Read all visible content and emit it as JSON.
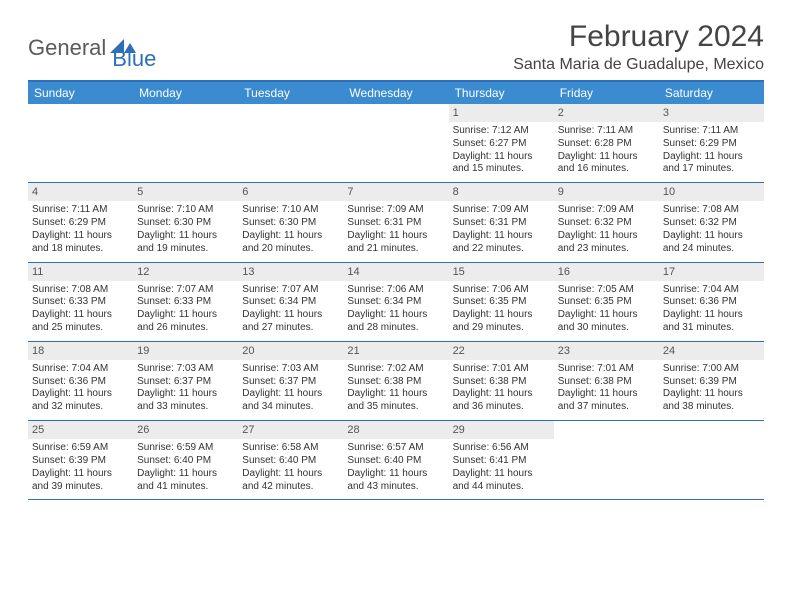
{
  "logo": {
    "text1": "General",
    "text2": "Blue"
  },
  "title": "February 2024",
  "location": "Santa Maria de Guadalupe, Mexico",
  "colors": {
    "header_bar": "#3a8bd0",
    "border": "#2d6fb8",
    "daynum_bg": "#ececec",
    "logo_gray": "#5a5a5a",
    "logo_blue": "#2d6fb8"
  },
  "day_names": [
    "Sunday",
    "Monday",
    "Tuesday",
    "Wednesday",
    "Thursday",
    "Friday",
    "Saturday"
  ],
  "weeks": [
    [
      {
        "empty": true
      },
      {
        "empty": true
      },
      {
        "empty": true
      },
      {
        "empty": true
      },
      {
        "n": "1",
        "sr": "Sunrise: 7:12 AM",
        "ss": "Sunset: 6:27 PM",
        "d1": "Daylight: 11 hours",
        "d2": "and 15 minutes."
      },
      {
        "n": "2",
        "sr": "Sunrise: 7:11 AM",
        "ss": "Sunset: 6:28 PM",
        "d1": "Daylight: 11 hours",
        "d2": "and 16 minutes."
      },
      {
        "n": "3",
        "sr": "Sunrise: 7:11 AM",
        "ss": "Sunset: 6:29 PM",
        "d1": "Daylight: 11 hours",
        "d2": "and 17 minutes."
      }
    ],
    [
      {
        "n": "4",
        "sr": "Sunrise: 7:11 AM",
        "ss": "Sunset: 6:29 PM",
        "d1": "Daylight: 11 hours",
        "d2": "and 18 minutes."
      },
      {
        "n": "5",
        "sr": "Sunrise: 7:10 AM",
        "ss": "Sunset: 6:30 PM",
        "d1": "Daylight: 11 hours",
        "d2": "and 19 minutes."
      },
      {
        "n": "6",
        "sr": "Sunrise: 7:10 AM",
        "ss": "Sunset: 6:30 PM",
        "d1": "Daylight: 11 hours",
        "d2": "and 20 minutes."
      },
      {
        "n": "7",
        "sr": "Sunrise: 7:09 AM",
        "ss": "Sunset: 6:31 PM",
        "d1": "Daylight: 11 hours",
        "d2": "and 21 minutes."
      },
      {
        "n": "8",
        "sr": "Sunrise: 7:09 AM",
        "ss": "Sunset: 6:31 PM",
        "d1": "Daylight: 11 hours",
        "d2": "and 22 minutes."
      },
      {
        "n": "9",
        "sr": "Sunrise: 7:09 AM",
        "ss": "Sunset: 6:32 PM",
        "d1": "Daylight: 11 hours",
        "d2": "and 23 minutes."
      },
      {
        "n": "10",
        "sr": "Sunrise: 7:08 AM",
        "ss": "Sunset: 6:32 PM",
        "d1": "Daylight: 11 hours",
        "d2": "and 24 minutes."
      }
    ],
    [
      {
        "n": "11",
        "sr": "Sunrise: 7:08 AM",
        "ss": "Sunset: 6:33 PM",
        "d1": "Daylight: 11 hours",
        "d2": "and 25 minutes."
      },
      {
        "n": "12",
        "sr": "Sunrise: 7:07 AM",
        "ss": "Sunset: 6:33 PM",
        "d1": "Daylight: 11 hours",
        "d2": "and 26 minutes."
      },
      {
        "n": "13",
        "sr": "Sunrise: 7:07 AM",
        "ss": "Sunset: 6:34 PM",
        "d1": "Daylight: 11 hours",
        "d2": "and 27 minutes."
      },
      {
        "n": "14",
        "sr": "Sunrise: 7:06 AM",
        "ss": "Sunset: 6:34 PM",
        "d1": "Daylight: 11 hours",
        "d2": "and 28 minutes."
      },
      {
        "n": "15",
        "sr": "Sunrise: 7:06 AM",
        "ss": "Sunset: 6:35 PM",
        "d1": "Daylight: 11 hours",
        "d2": "and 29 minutes."
      },
      {
        "n": "16",
        "sr": "Sunrise: 7:05 AM",
        "ss": "Sunset: 6:35 PM",
        "d1": "Daylight: 11 hours",
        "d2": "and 30 minutes."
      },
      {
        "n": "17",
        "sr": "Sunrise: 7:04 AM",
        "ss": "Sunset: 6:36 PM",
        "d1": "Daylight: 11 hours",
        "d2": "and 31 minutes."
      }
    ],
    [
      {
        "n": "18",
        "sr": "Sunrise: 7:04 AM",
        "ss": "Sunset: 6:36 PM",
        "d1": "Daylight: 11 hours",
        "d2": "and 32 minutes."
      },
      {
        "n": "19",
        "sr": "Sunrise: 7:03 AM",
        "ss": "Sunset: 6:37 PM",
        "d1": "Daylight: 11 hours",
        "d2": "and 33 minutes."
      },
      {
        "n": "20",
        "sr": "Sunrise: 7:03 AM",
        "ss": "Sunset: 6:37 PM",
        "d1": "Daylight: 11 hours",
        "d2": "and 34 minutes."
      },
      {
        "n": "21",
        "sr": "Sunrise: 7:02 AM",
        "ss": "Sunset: 6:38 PM",
        "d1": "Daylight: 11 hours",
        "d2": "and 35 minutes."
      },
      {
        "n": "22",
        "sr": "Sunrise: 7:01 AM",
        "ss": "Sunset: 6:38 PM",
        "d1": "Daylight: 11 hours",
        "d2": "and 36 minutes."
      },
      {
        "n": "23",
        "sr": "Sunrise: 7:01 AM",
        "ss": "Sunset: 6:38 PM",
        "d1": "Daylight: 11 hours",
        "d2": "and 37 minutes."
      },
      {
        "n": "24",
        "sr": "Sunrise: 7:00 AM",
        "ss": "Sunset: 6:39 PM",
        "d1": "Daylight: 11 hours",
        "d2": "and 38 minutes."
      }
    ],
    [
      {
        "n": "25",
        "sr": "Sunrise: 6:59 AM",
        "ss": "Sunset: 6:39 PM",
        "d1": "Daylight: 11 hours",
        "d2": "and 39 minutes."
      },
      {
        "n": "26",
        "sr": "Sunrise: 6:59 AM",
        "ss": "Sunset: 6:40 PM",
        "d1": "Daylight: 11 hours",
        "d2": "and 41 minutes."
      },
      {
        "n": "27",
        "sr": "Sunrise: 6:58 AM",
        "ss": "Sunset: 6:40 PM",
        "d1": "Daylight: 11 hours",
        "d2": "and 42 minutes."
      },
      {
        "n": "28",
        "sr": "Sunrise: 6:57 AM",
        "ss": "Sunset: 6:40 PM",
        "d1": "Daylight: 11 hours",
        "d2": "and 43 minutes."
      },
      {
        "n": "29",
        "sr": "Sunrise: 6:56 AM",
        "ss": "Sunset: 6:41 PM",
        "d1": "Daylight: 11 hours",
        "d2": "and 44 minutes."
      },
      {
        "empty": true
      },
      {
        "empty": true
      }
    ]
  ]
}
